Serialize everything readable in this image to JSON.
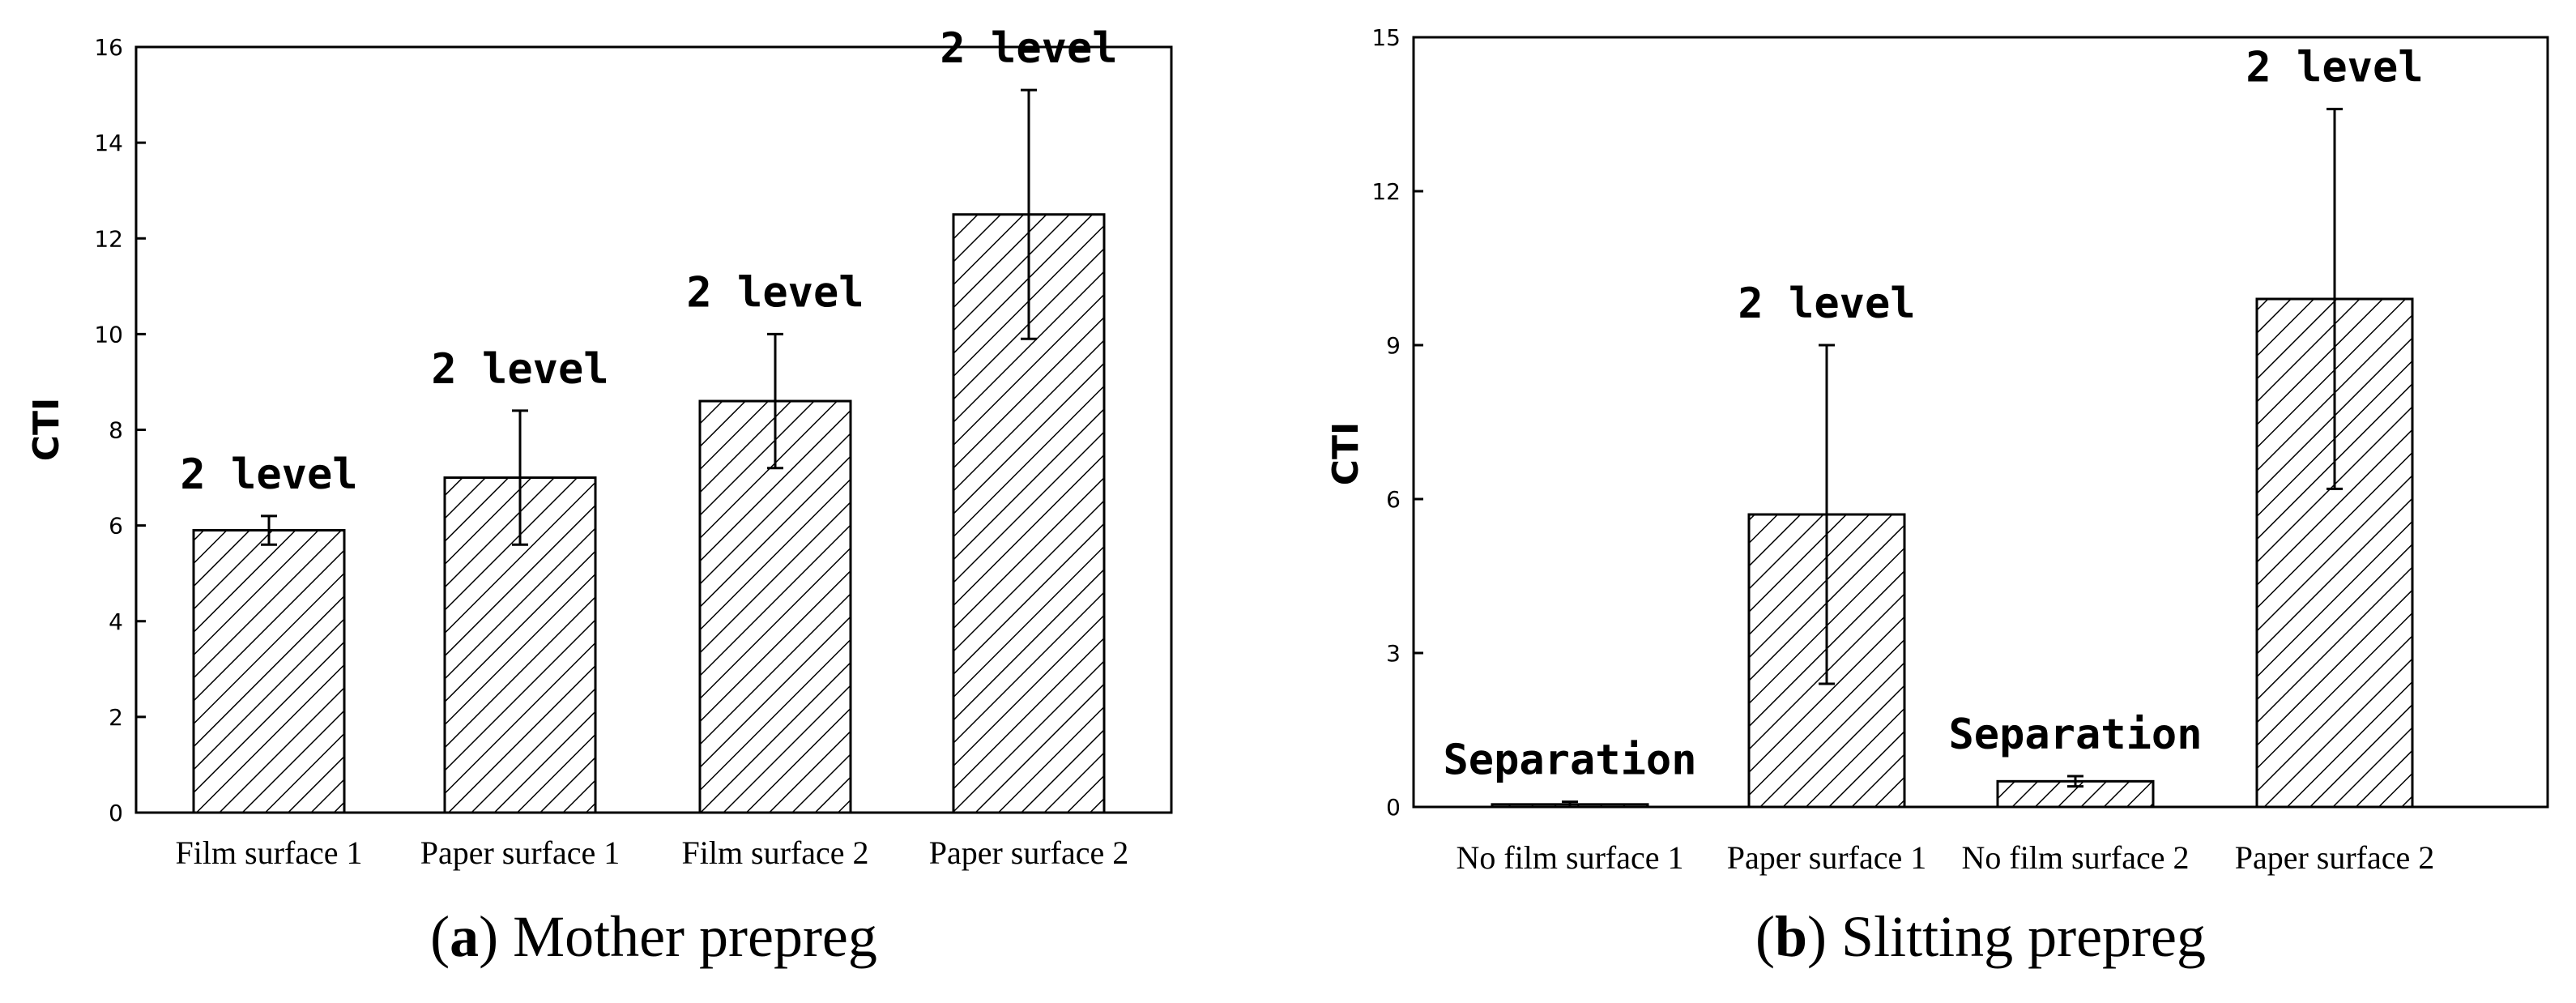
{
  "chart_data": [
    {
      "type": "bar",
      "caption_letter": "a",
      "caption_text": "Mother prepreg",
      "ylabel": "CTI",
      "xlabel": "",
      "ylim": [
        0,
        16
      ],
      "yticks": [
        "0",
        "2",
        "4",
        "6",
        "8",
        "10",
        "12",
        "14",
        "16"
      ],
      "categories": [
        "Film surface 1",
        "Paper surface 1",
        "Film surface 2",
        "Paper surface 2"
      ],
      "values": [
        5.9,
        7.0,
        8.6,
        12.5
      ],
      "errors": [
        0.3,
        1.4,
        1.4,
        2.6
      ],
      "annotations": [
        "2 level",
        "2 level",
        "2 level",
        "2 level"
      ],
      "grid": false
    },
    {
      "type": "bar",
      "caption_letter": "b",
      "caption_text": "Slitting prepreg",
      "ylabel": "CTI",
      "xlabel": "",
      "ylim": [
        0,
        15
      ],
      "yticks": [
        "0",
        "3",
        "6",
        "9",
        "12",
        "15"
      ],
      "categories": [
        "No film surface 1",
        "Paper surface 1",
        "No film surface 2",
        "Paper surface 2"
      ],
      "values": [
        0.05,
        5.7,
        0.5,
        9.9
      ],
      "errors": [
        0.05,
        3.3,
        0.1,
        3.7
      ],
      "annotations": [
        "Separation",
        "2 level",
        "Separation",
        "2 level"
      ],
      "grid": false
    }
  ]
}
